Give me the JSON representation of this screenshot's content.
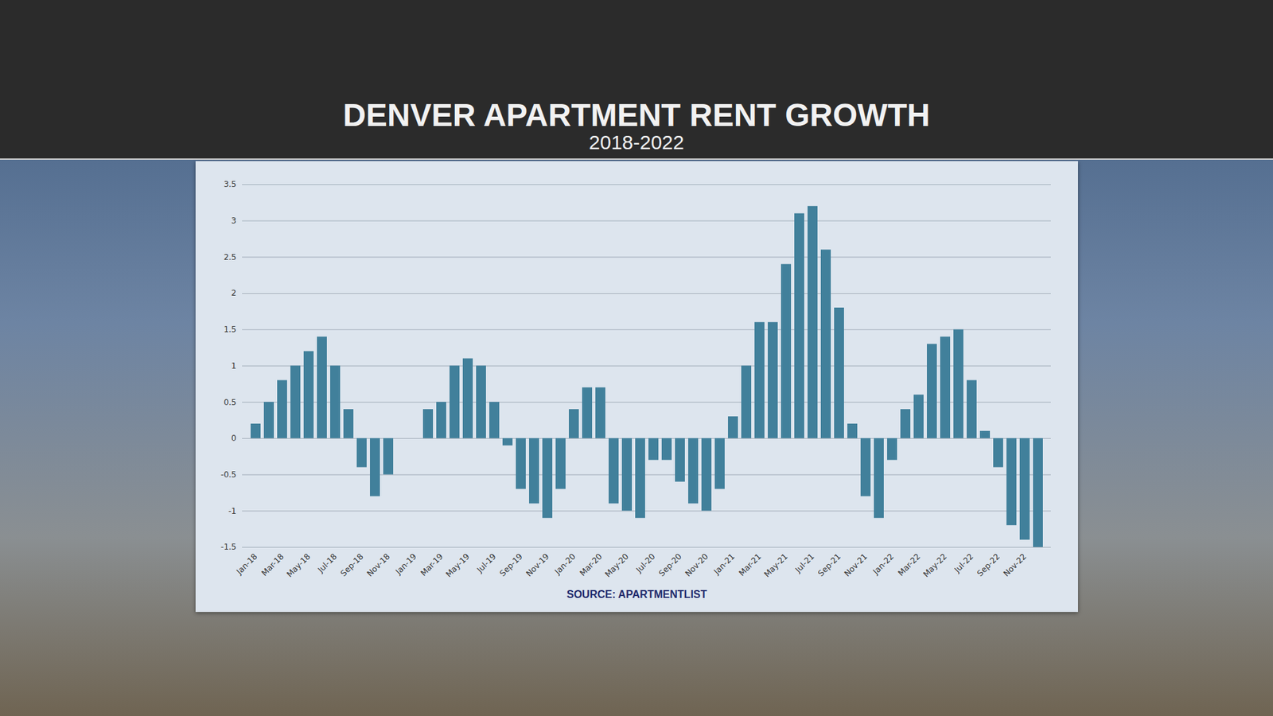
{
  "chart_data": {
    "type": "bar",
    "title": "DENVER APARTMENT RENT GROWTH",
    "subtitle": "2018-2022",
    "source": "SOURCE: APARTMENTLIST",
    "categories": [
      "Jan-18",
      null,
      "Mar-18",
      null,
      "May-18",
      null,
      "Jul-18",
      null,
      "Sep-18",
      null,
      "Nov-18",
      null,
      "Jan-19",
      null,
      "Mar-19",
      null,
      "May-19",
      null,
      "Jul-19",
      null,
      "Sep-19",
      null,
      "Nov-19",
      null,
      "Jan-20",
      null,
      "Mar-20",
      null,
      "May-20",
      null,
      "Jul-20",
      null,
      "Sep-20",
      null,
      "Nov-20",
      null,
      "Jan-21",
      null,
      "Mar-21",
      null,
      "May-21",
      null,
      "Jul-21",
      null,
      "Sep-21",
      null,
      "Nov-21",
      null,
      "Jan-22",
      null,
      "Mar-22",
      null,
      "May-22",
      null,
      "Jul-22",
      null,
      "Sep-22",
      null,
      "Nov-22",
      null
    ],
    "values": [
      0.2,
      0.5,
      0.8,
      1.0,
      1.2,
      1.4,
      1.0,
      0.4,
      -0.4,
      -0.8,
      -0.5,
      0,
      0,
      0.4,
      0.5,
      1.0,
      1.1,
      1.0,
      0.5,
      -0.1,
      -0.7,
      -0.9,
      -1.1,
      -0.7,
      0.4,
      0.7,
      0.7,
      -0.9,
      -1.0,
      -1.1,
      -0.3,
      -0.3,
      -0.6,
      -0.9,
      -1.0,
      -0.7,
      0.3,
      1.0,
      1.6,
      1.6,
      2.4,
      3.1,
      3.2,
      2.6,
      1.8,
      0.2,
      -0.8,
      -1.1,
      -0.3,
      0.4,
      0.6,
      1.3,
      1.4,
      1.5,
      0.8,
      0.1,
      -0.4,
      -1.2,
      -1.4,
      -1.5
    ],
    "color": "#41809b",
    "ylim": [
      -1.5,
      3.5
    ],
    "yticks": [
      -1.5,
      -1,
      -0.5,
      0,
      0.5,
      1,
      1.5,
      2,
      2.5,
      3,
      3.5
    ],
    "grid": true
  }
}
